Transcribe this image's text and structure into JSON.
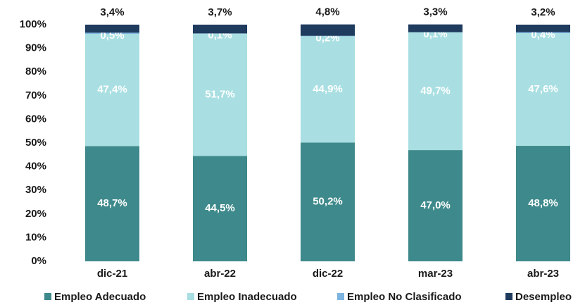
{
  "chart_data": {
    "type": "bar",
    "stacked": true,
    "categories": [
      "dic-21",
      "abr-22",
      "dic-22",
      "mar-23",
      "abr-23"
    ],
    "series": [
      {
        "name": "Empleo Adecuado",
        "color": "#3e898b",
        "values": [
          48.7,
          44.5,
          50.2,
          47.0,
          48.8
        ],
        "value_labels": [
          "48,7%",
          "44,5%",
          "50,2%",
          "47,0%",
          "48,8%"
        ]
      },
      {
        "name": "Empleo Inadecuado",
        "color": "#a9dfe2",
        "values": [
          47.4,
          51.7,
          44.9,
          49.7,
          47.6
        ],
        "value_labels": [
          "47,4%",
          "51,7%",
          "44,9%",
          "49,7%",
          "47,6%"
        ]
      },
      {
        "name": "Empleo No Clasificado",
        "color": "#7db4e2",
        "values": [
          0.5,
          0.1,
          0.2,
          0.1,
          0.4
        ],
        "value_labels": [
          "0,5%",
          "0,1%",
          "0,2%",
          "0,1%",
          "0,4%"
        ]
      },
      {
        "name": "Desempleo",
        "color": "#1f3b5e",
        "values": [
          3.4,
          3.7,
          4.8,
          3.3,
          3.2
        ],
        "value_labels": [
          "3,4%",
          "3,7%",
          "4,8%",
          "3,3%",
          "3,2%"
        ]
      }
    ],
    "ylim": [
      0,
      100
    ],
    "yticks": [
      {
        "value": 0,
        "label": "0%"
      },
      {
        "value": 10,
        "label": "10%"
      },
      {
        "value": 20,
        "label": "20%"
      },
      {
        "value": 30,
        "label": "30%"
      },
      {
        "value": 40,
        "label": "40%"
      },
      {
        "value": 50,
        "label": "50%"
      },
      {
        "value": 60,
        "label": "60%"
      },
      {
        "value": 70,
        "label": "70%"
      },
      {
        "value": 80,
        "label": "80%"
      },
      {
        "value": 90,
        "label": "90%"
      },
      {
        "value": 100,
        "label": "100%"
      }
    ],
    "legend": "bottom"
  }
}
